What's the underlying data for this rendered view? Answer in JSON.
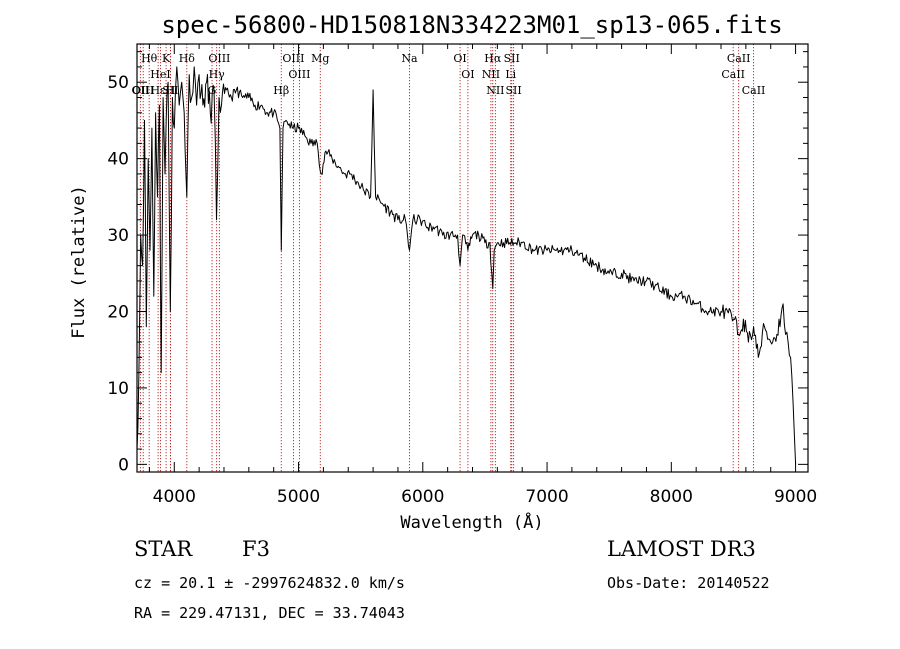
{
  "chart_data": {
    "type": "line",
    "title": "spec-56800-HD150818N334223M01_sp13-065.fits",
    "xlabel": "Wavelength (Å)",
    "ylabel": "Flux (relative)",
    "xlim": [
      3700,
      9100
    ],
    "ylim": [
      -1,
      55
    ],
    "xticks": [
      4000,
      5000,
      6000,
      7000,
      8000,
      9000
    ],
    "yticks": [
      0,
      10,
      20,
      30,
      40,
      50
    ],
    "series": [
      {
        "name": "flux",
        "x": [
          3700,
          3715,
          3730,
          3745,
          3760,
          3775,
          3790,
          3805,
          3820,
          3835,
          3850,
          3865,
          3880,
          3895,
          3910,
          3925,
          3935,
          3950,
          3968,
          3985,
          4000,
          4020,
          4040,
          4060,
          4080,
          4101,
          4120,
          4140,
          4160,
          4180,
          4200,
          4230,
          4260,
          4290,
          4320,
          4340,
          4360,
          4380,
          4420,
          4460,
          4500,
          4550,
          4600,
          4650,
          4700,
          4750,
          4800,
          4830,
          4850,
          4861,
          4875,
          4900,
          4950,
          5000,
          5050,
          5100,
          5150,
          5183,
          5220,
          5270,
          5320,
          5370,
          5420,
          5470,
          5520,
          5580,
          5600,
          5620,
          5680,
          5740,
          5800,
          5860,
          5893,
          5920,
          5980,
          6040,
          6100,
          6160,
          6220,
          6280,
          6300,
          6320,
          6363,
          6400,
          6450,
          6500,
          6540,
          6563,
          6575,
          6600,
          6650,
          6700,
          6750,
          6800,
          6900,
          7000,
          7100,
          7200,
          7300,
          7400,
          7500,
          7600,
          7700,
          7800,
          7900,
          8000,
          8100,
          8200,
          8300,
          8400,
          8500,
          8542,
          8580,
          8620,
          8662,
          8700,
          8750,
          8800,
          8850,
          8900,
          8920,
          8940,
          8960,
          8980,
          9000
        ],
        "values": [
          2,
          12,
          30,
          26,
          45,
          18,
          40,
          28,
          44,
          22,
          46,
          35,
          47,
          12,
          48,
          38,
          45,
          50,
          20,
          48,
          44,
          52,
          47,
          50,
          46,
          35,
          51,
          48,
          52,
          47,
          51,
          47,
          50,
          46,
          49,
          32,
          48,
          47,
          49,
          48,
          49,
          48,
          48,
          47,
          47,
          46,
          46,
          45,
          44,
          28,
          44,
          45,
          44,
          44,
          43,
          42,
          42,
          38,
          41,
          40,
          39,
          38,
          38,
          37,
          36,
          35,
          49,
          35,
          34,
          33,
          32,
          32,
          28,
          32,
          32,
          31,
          31,
          30,
          30,
          30,
          26,
          30,
          28,
          30,
          30,
          29,
          29,
          23,
          28,
          29,
          29,
          29,
          29,
          29,
          28,
          28,
          28,
          28,
          27,
          26,
          25,
          25,
          24,
          24,
          23,
          22,
          22,
          21,
          20,
          20,
          19,
          17,
          19,
          16,
          18,
          14,
          18,
          16,
          17,
          21,
          17,
          16,
          14,
          8,
          0
        ]
      }
    ],
    "lines": [
      {
        "label": "Hθ",
        "wl": 3798
      },
      {
        "label": "OII",
        "wl": 3727
      },
      {
        "label": "OIII",
        "wl": 3750
      },
      {
        "label": "K",
        "wl": 3934
      },
      {
        "label": "HeI",
        "wl": 3889
      },
      {
        "label": "Hε",
        "wl": 3870
      },
      {
        "label": "SII",
        "wl": 3969
      },
      {
        "label": "H",
        "wl": 3970
      },
      {
        "label": "Hδ",
        "wl": 4101
      },
      {
        "label": "OIII",
        "wl": 4363
      },
      {
        "label": "Hγ",
        "wl": 4341
      },
      {
        "label": "G",
        "wl": 4304
      },
      {
        "label": "OIII",
        "wl": 4959
      },
      {
        "label": "OIII",
        "wl": 5007
      },
      {
        "label": "Hβ",
        "wl": 4861
      },
      {
        "label": "Mg",
        "wl": 5175
      },
      {
        "label": "Na",
        "wl": 5893
      },
      {
        "label": "OI",
        "wl": 6300
      },
      {
        "label": "OI",
        "wl": 6363
      },
      {
        "label": "Hα",
        "wl": 6563
      },
      {
        "label": "NII",
        "wl": 6548
      },
      {
        "label": "NII",
        "wl": 6584
      },
      {
        "label": "SII",
        "wl": 6716
      },
      {
        "label": "Li",
        "wl": 6708
      },
      {
        "label": "SII",
        "wl": 6731
      },
      {
        "label": "CaII",
        "wl": 8542
      },
      {
        "label": "CaII",
        "wl": 8498
      },
      {
        "label": "CaII",
        "wl": 8662
      }
    ]
  },
  "info": {
    "object_class": "STAR",
    "subclass": "F3",
    "survey": "LAMOST DR3",
    "cz": "cz = 20.1 ± -2997624832.0 km/s",
    "obs_date": "Obs-Date: 20140522",
    "coords": "RA = 229.47131, DEC =  33.74043"
  }
}
